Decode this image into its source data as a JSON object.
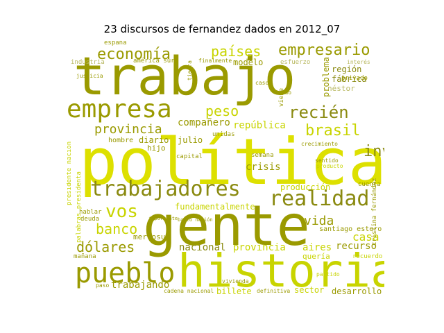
{
  "title": "23 discursos de fernandez dados en 2012_07",
  "colors": {
    "olive": "#9a9a00",
    "lime": "#c8d400",
    "yellow": "#dde000",
    "dark": "#8a8a10",
    "pale": "#b8b860"
  },
  "words": {
    "trabajo": "trabajo",
    "politica": "política",
    "gente": "gente",
    "historia": "historia",
    "pueblo": "pueblo",
    "empresa": "empresa",
    "trabajadores": "trabajadores",
    "realidad": "realidad",
    "economia": "economía",
    "empresario": "empresario",
    "paises": "países",
    "inversion": "inversión",
    "recien": "recién",
    "brasil": "brasil",
    "provincia": "provincia",
    "vos": "vos",
    "banco": "banco",
    "dolares": "dólares",
    "peso": "peso",
    "vida": "vida",
    "casa": "casa",
    "companero": "compañero",
    "republica": "república",
    "crisis": "crisis",
    "nacional": "nacional",
    "provincia2": "provincia",
    "aires": "aires",
    "recurso": "recurso",
    "trabajando": "trabajando",
    "sector": "sector",
    "desarrollo": "desarrollo",
    "billete": "billete",
    "fundamentalmente": "fundamentalmente",
    "produccion": "producción",
    "region": "región",
    "fabrica": "fábrica",
    "problema": "problema",
    "nestor": "néstor",
    "modelo": "modelo",
    "esfuerzo": "esfuerzo",
    "hombre": "hombre",
    "diario": "diario",
    "julio": "julio",
    "hijo": "hijo",
    "mercosur": "mercosur",
    "manana": "mañana",
    "hablar": "hablar",
    "deuda": "deuda",
    "santiago": "santiago estero",
    "queria": "quería",
    "espana": "españa",
    "america": "américa sur",
    "industria": "industria",
    "semana": "semana",
    "unidas": "unidas",
    "capital": "capital",
    "tuenta": "cuenta",
    "presidente": "presidente nación",
    "palabras": "palabras presidenta",
    "cristina": "cristina fernández",
    "tierra": "tierra",
    "finalmente": "finalmente",
    "recuerdo": "recuerdo",
    "partido": "partido",
    "vivienda": "vivienda",
    "definitiva": "definitiva",
    "paso": "paso",
    "cadena": "cadena nacional",
    "banco_nacion": "banco nación",
    "viene": "viene",
    "privado": "privado",
    "caso": "caso",
    "interes": "interés",
    "crecimiento": "crecimiento",
    "producto": "producto",
    "justicia": "justicia",
    "sentido": "sentido",
    "mundo": "mundo",
    "importante": "importante"
  }
}
